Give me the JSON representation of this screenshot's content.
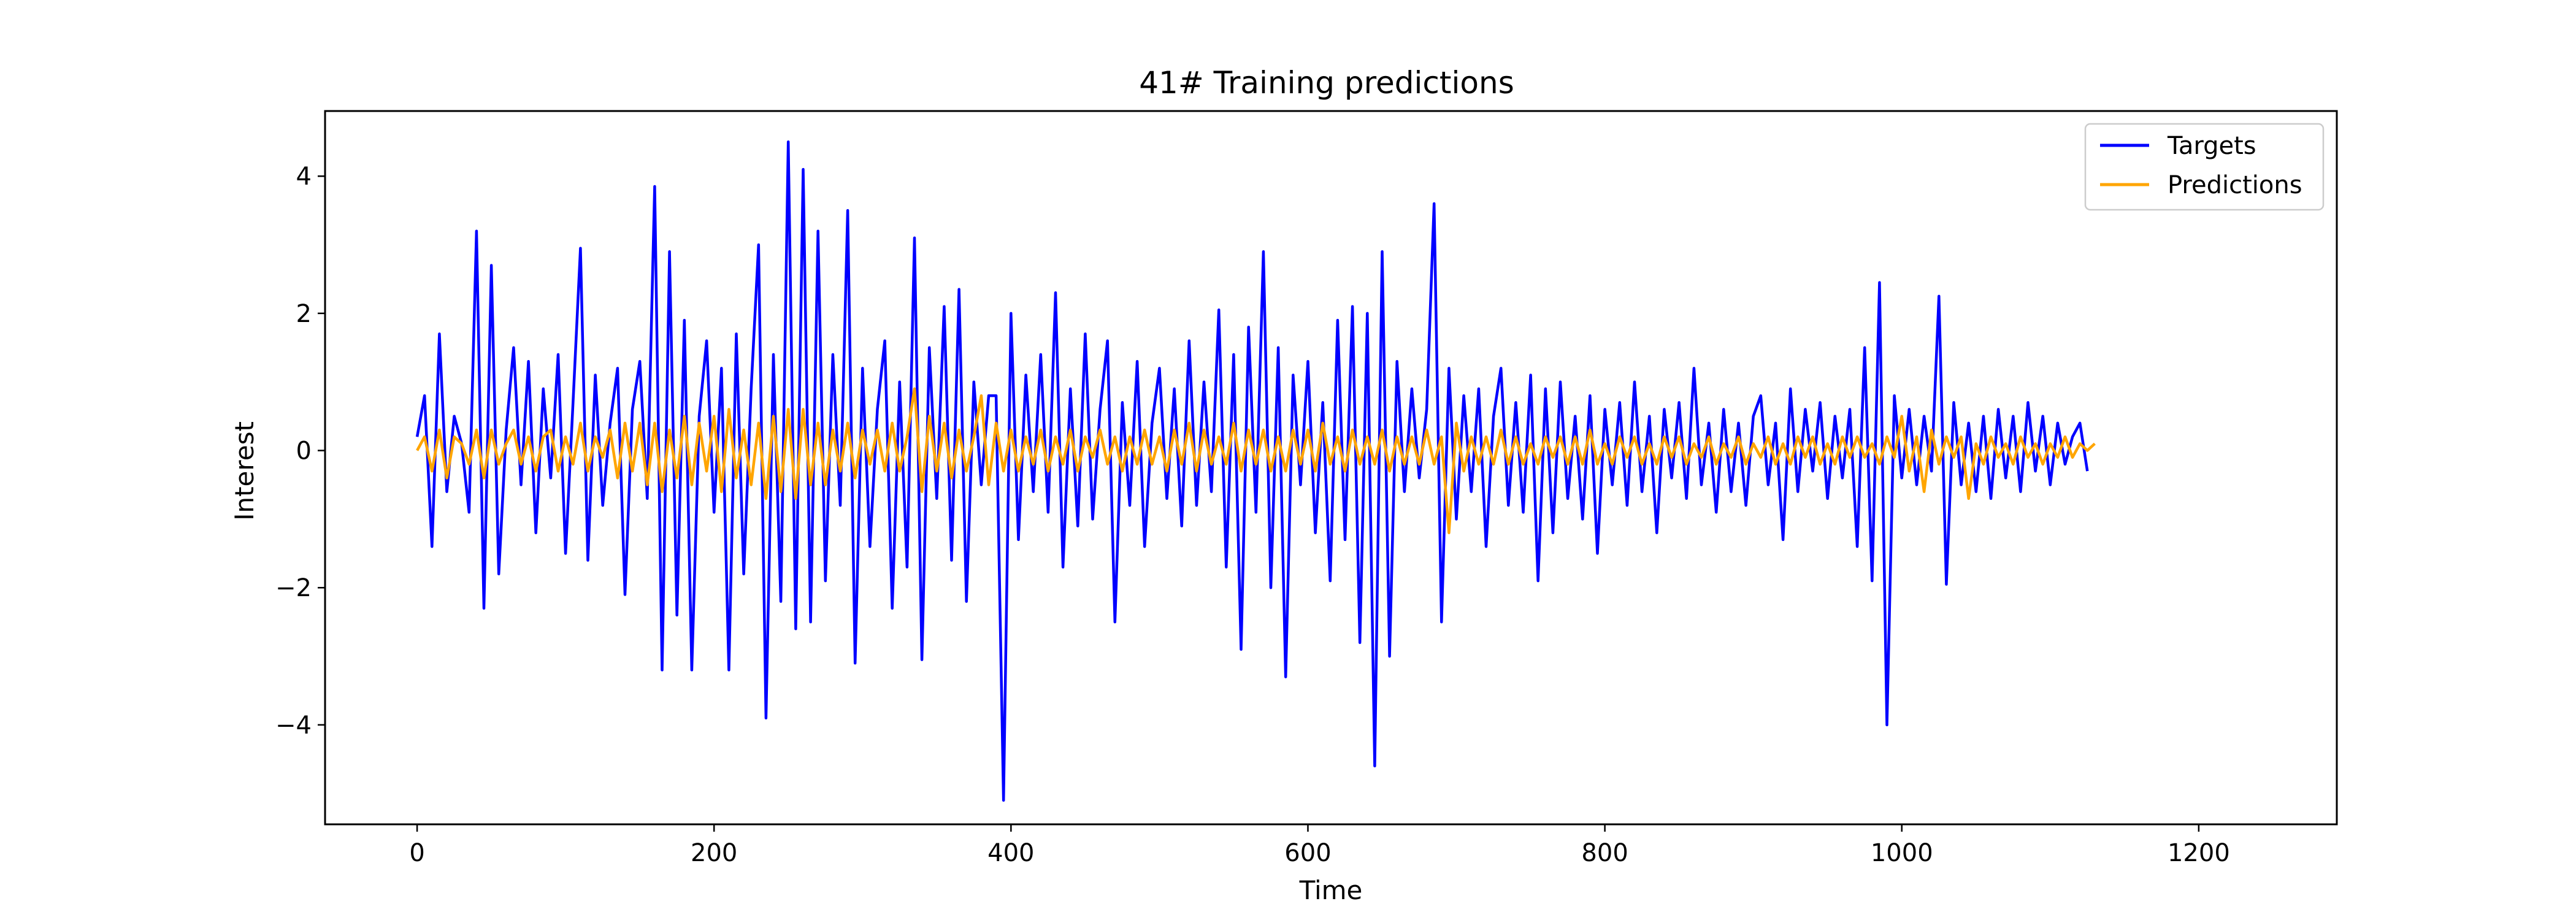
{
  "chart_data": {
    "type": "line",
    "title": "41# Training predictions",
    "xlabel": "Time",
    "ylabel": "Interest",
    "xlim": [
      -62,
      1293
    ],
    "ylim": [
      -5.45,
      4.95
    ],
    "xticks": [
      0,
      200,
      400,
      600,
      800,
      1000,
      1200
    ],
    "yticks": [
      -4,
      -2,
      0,
      2,
      4
    ],
    "grid": false,
    "legend_position": "top-right",
    "series": [
      {
        "name": "Targets",
        "color": "#0000ff",
        "x_start": 0,
        "x_step": 5,
        "values": [
          0.2,
          0.8,
          -1.4,
          1.7,
          -0.6,
          0.5,
          0.1,
          -0.9,
          3.2,
          -2.3,
          2.7,
          -1.8,
          0.3,
          1.5,
          -0.5,
          1.3,
          -1.2,
          0.9,
          -0.4,
          1.4,
          -1.5,
          0.7,
          2.95,
          -1.6,
          1.1,
          -0.8,
          0.4,
          1.2,
          -2.1,
          0.6,
          1.3,
          -0.7,
          3.85,
          -3.2,
          2.9,
          -2.4,
          1.9,
          -3.2,
          0.5,
          1.6,
          -0.9,
          1.2,
          -3.2,
          1.7,
          -1.8,
          0.9,
          3.0,
          -3.9,
          1.4,
          -2.2,
          4.5,
          -2.6,
          4.1,
          -2.5,
          3.2,
          -1.9,
          1.4,
          -0.8,
          3.5,
          -3.1,
          1.2,
          -1.4,
          0.6,
          1.6,
          -2.3,
          1.0,
          -1.7,
          3.1,
          -3.05,
          1.5,
          -0.7,
          2.1,
          -1.6,
          2.35,
          -2.2,
          1.0,
          -0.5,
          0.8,
          0.8,
          -5.1,
          2.0,
          -1.3,
          1.1,
          -0.6,
          1.4,
          -0.9,
          2.3,
          -1.7,
          0.9,
          -1.1,
          1.7,
          -1.0,
          0.6,
          1.6,
          -2.5,
          0.7,
          -0.8,
          1.3,
          -1.4,
          0.4,
          1.2,
          -0.7,
          0.9,
          -1.1,
          1.6,
          -0.8,
          1.0,
          -0.6,
          2.05,
          -1.7,
          1.4,
          -2.9,
          1.8,
          -0.9,
          2.9,
          -2.0,
          1.5,
          -3.3,
          1.1,
          -0.5,
          1.3,
          -1.2,
          0.7,
          -1.9,
          1.9,
          -1.3,
          2.1,
          -2.8,
          2.0,
          -4.6,
          2.9,
          -3.0,
          1.3,
          -0.6,
          0.9,
          -0.4,
          0.6,
          3.6,
          -2.5,
          1.2,
          -1.0,
          0.8,
          -0.6,
          0.9,
          -1.4,
          0.5,
          1.2,
          -0.8,
          0.7,
          -0.9,
          1.1,
          -1.9,
          0.9,
          -1.2,
          1.0,
          -0.7,
          0.5,
          -1.0,
          0.8,
          -1.5,
          0.6,
          -0.5,
          0.7,
          -0.8,
          1.0,
          -0.6,
          0.5,
          -1.2,
          0.6,
          -0.4,
          0.7,
          -0.7,
          1.2,
          -0.5,
          0.4,
          -0.9,
          0.6,
          -0.6,
          0.4,
          -0.8,
          0.5,
          0.8,
          -0.5,
          0.4,
          -1.3,
          0.9,
          -0.6,
          0.6,
          -0.3,
          0.7,
          -0.7,
          0.5,
          -0.4,
          0.6,
          -1.4,
          1.5,
          -1.9,
          2.45,
          -4.0,
          0.8,
          -0.4,
          0.6,
          -0.5,
          0.5,
          -0.3,
          2.25,
          -1.95,
          0.7,
          -0.5,
          0.4,
          -0.6,
          0.5,
          -0.7,
          0.6,
          -0.4,
          0.5,
          -0.6,
          0.7,
          -0.3,
          0.5,
          -0.5,
          0.4,
          -0.2,
          0.2,
          0.4,
          -0.3
        ]
      },
      {
        "name": "Predictions",
        "color": "#ffa500",
        "x_start": 0,
        "x_step": 5,
        "values": [
          0.0,
          0.2,
          -0.3,
          0.3,
          -0.4,
          0.2,
          0.1,
          -0.2,
          0.3,
          -0.4,
          0.3,
          -0.2,
          0.1,
          0.3,
          -0.2,
          0.2,
          -0.3,
          0.2,
          0.3,
          -0.3,
          0.2,
          -0.2,
          0.4,
          -0.3,
          0.2,
          -0.1,
          0.3,
          -0.4,
          0.4,
          -0.3,
          0.4,
          -0.5,
          0.4,
          -0.6,
          0.3,
          -0.4,
          0.5,
          -0.5,
          0.4,
          -0.3,
          0.5,
          -0.6,
          0.6,
          -0.4,
          0.3,
          -0.5,
          0.4,
          -0.7,
          0.5,
          -0.6,
          0.6,
          -0.7,
          0.6,
          -0.5,
          0.4,
          -0.5,
          0.3,
          -0.3,
          0.4,
          -0.4,
          0.3,
          -0.2,
          0.3,
          -0.3,
          0.4,
          -0.3,
          0.2,
          0.9,
          -0.6,
          0.5,
          -0.3,
          0.4,
          -0.4,
          0.3,
          -0.3,
          0.2,
          0.8,
          -0.5,
          0.4,
          -0.3,
          0.3,
          -0.3,
          0.2,
          -0.2,
          0.3,
          -0.3,
          0.2,
          -0.2,
          0.3,
          -0.3,
          0.2,
          -0.1,
          0.3,
          -0.2,
          0.2,
          -0.3,
          0.2,
          -0.2,
          0.3,
          -0.2,
          0.2,
          -0.3,
          0.3,
          -0.2,
          0.4,
          -0.3,
          0.3,
          -0.2,
          0.2,
          -0.2,
          0.4,
          -0.3,
          0.3,
          -0.2,
          0.3,
          -0.3,
          0.2,
          -0.3,
          0.3,
          -0.2,
          0.3,
          -0.3,
          0.4,
          -0.2,
          0.2,
          -0.3,
          0.3,
          -0.2,
          0.2,
          -0.2,
          0.3,
          -0.3,
          0.2,
          -0.2,
          0.2,
          -0.2,
          0.3,
          -0.2,
          0.2,
          -1.2,
          0.4,
          -0.3,
          0.2,
          -0.2,
          0.2,
          -0.2,
          0.3,
          -0.2,
          0.2,
          -0.2,
          0.1,
          -0.2,
          0.2,
          -0.1,
          0.2,
          -0.2,
          0.2,
          -0.2,
          0.3,
          -0.2,
          0.1,
          -0.2,
          0.2,
          -0.1,
          0.2,
          -0.2,
          0.1,
          -0.2,
          0.2,
          -0.1,
          0.2,
          -0.2,
          0.1,
          -0.1,
          0.2,
          -0.2,
          0.1,
          -0.1,
          0.2,
          -0.2,
          0.1,
          -0.1,
          0.2,
          -0.2,
          0.1,
          -0.2,
          0.2,
          -0.1,
          0.2,
          -0.2,
          0.1,
          -0.2,
          0.2,
          -0.1,
          0.2,
          -0.1,
          0.1,
          -0.2,
          0.2,
          -0.1,
          0.5,
          -0.3,
          0.2,
          -0.6,
          0.3,
          -0.2,
          0.2,
          -0.1,
          0.2,
          -0.7,
          0.1,
          -0.2,
          0.2,
          -0.1,
          0.1,
          -0.2,
          0.2,
          -0.1,
          0.1,
          -0.2,
          0.1,
          -0.1,
          0.2,
          -0.1,
          0.1,
          0.0,
          0.1
        ]
      }
    ]
  }
}
